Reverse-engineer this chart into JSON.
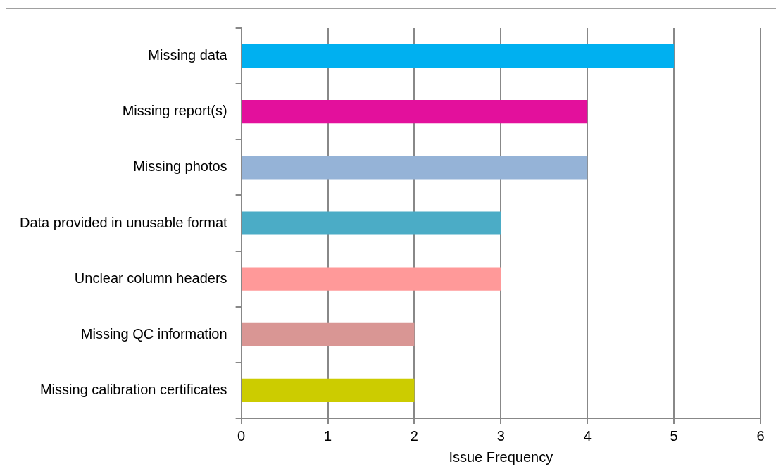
{
  "chart_data": {
    "type": "bar",
    "orientation": "horizontal",
    "categories": [
      "Missing data",
      "Missing report(s)",
      "Missing photos",
      "Data provided in unusable format",
      "Unclear column headers",
      "Missing QC information",
      "Missing calibration certificates"
    ],
    "values": [
      5,
      4,
      4,
      3,
      3,
      2,
      2
    ],
    "colors": [
      "#00b0f0",
      "#e3109c",
      "#95b3d7",
      "#4bacc6",
      "#ff9999",
      "#d99694",
      "#cccc00"
    ],
    "xlabel": "Issue Frequency",
    "xlim": [
      0,
      6
    ],
    "xticks": [
      0,
      1,
      2,
      3,
      4,
      5,
      6
    ],
    "grid": "x",
    "legend": false
  }
}
